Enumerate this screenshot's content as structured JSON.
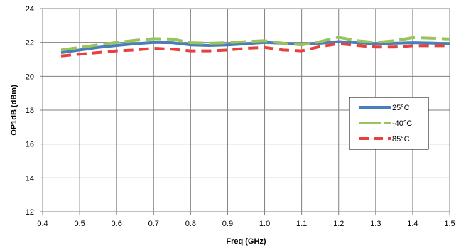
{
  "chart_data": {
    "type": "line",
    "title": "",
    "xlabel": "Freq (GHz)",
    "ylabel": "OP1dB (dBm)",
    "xlim": [
      0.4,
      1.5
    ],
    "ylim": [
      12,
      24
    ],
    "x_ticks": [
      "0.4",
      "0.5",
      "0.6",
      "0.7",
      "0.8",
      "0.9",
      "1.0",
      "1.1",
      "1.2",
      "1.3",
      "1.4",
      "1.5"
    ],
    "y_ticks": [
      "12",
      "14",
      "16",
      "18",
      "20",
      "22",
      "24"
    ],
    "grid": true,
    "legend_position": "right",
    "series": [
      {
        "name": "25°C",
        "color": "#4a7ebb",
        "dash": "solid",
        "x": [
          0.45,
          0.5,
          0.55,
          0.6,
          0.65,
          0.7,
          0.75,
          0.8,
          0.85,
          0.9,
          0.95,
          1.0,
          1.05,
          1.1,
          1.15,
          1.2,
          1.25,
          1.3,
          1.35,
          1.4,
          1.45,
          1.5
        ],
        "values": [
          21.4,
          21.55,
          21.7,
          21.82,
          21.92,
          22.0,
          21.98,
          21.85,
          21.82,
          21.85,
          21.92,
          22.0,
          21.95,
          21.9,
          21.95,
          22.05,
          21.98,
          21.92,
          21.95,
          21.98,
          21.96,
          21.92
        ]
      },
      {
        "name": "-40°C",
        "color": "#98c459",
        "dash": "long-dash",
        "x": [
          0.45,
          0.5,
          0.55,
          0.6,
          0.65,
          0.7,
          0.75,
          0.8,
          0.85,
          0.9,
          0.95,
          1.0,
          1.05,
          1.1,
          1.15,
          1.2,
          1.25,
          1.3,
          1.35,
          1.4,
          1.45,
          1.5
        ],
        "values": [
          21.55,
          21.7,
          21.85,
          22.0,
          22.12,
          22.22,
          22.2,
          21.98,
          21.95,
          21.98,
          22.05,
          22.1,
          21.95,
          21.85,
          22.05,
          22.3,
          22.1,
          22.0,
          22.1,
          22.28,
          22.25,
          22.2
        ]
      },
      {
        "name": "85°C",
        "color": "#e8413c",
        "dash": "dash",
        "x": [
          0.45,
          0.5,
          0.55,
          0.6,
          0.65,
          0.7,
          0.75,
          0.8,
          0.85,
          0.9,
          0.95,
          1.0,
          1.05,
          1.1,
          1.15,
          1.2,
          1.25,
          1.3,
          1.35,
          1.4,
          1.45,
          1.5
        ],
        "values": [
          21.2,
          21.3,
          21.4,
          21.5,
          21.55,
          21.65,
          21.6,
          21.5,
          21.5,
          21.55,
          21.65,
          21.7,
          21.55,
          21.5,
          21.75,
          21.92,
          21.82,
          21.72,
          21.72,
          21.8,
          21.8,
          21.8
        ]
      }
    ]
  }
}
